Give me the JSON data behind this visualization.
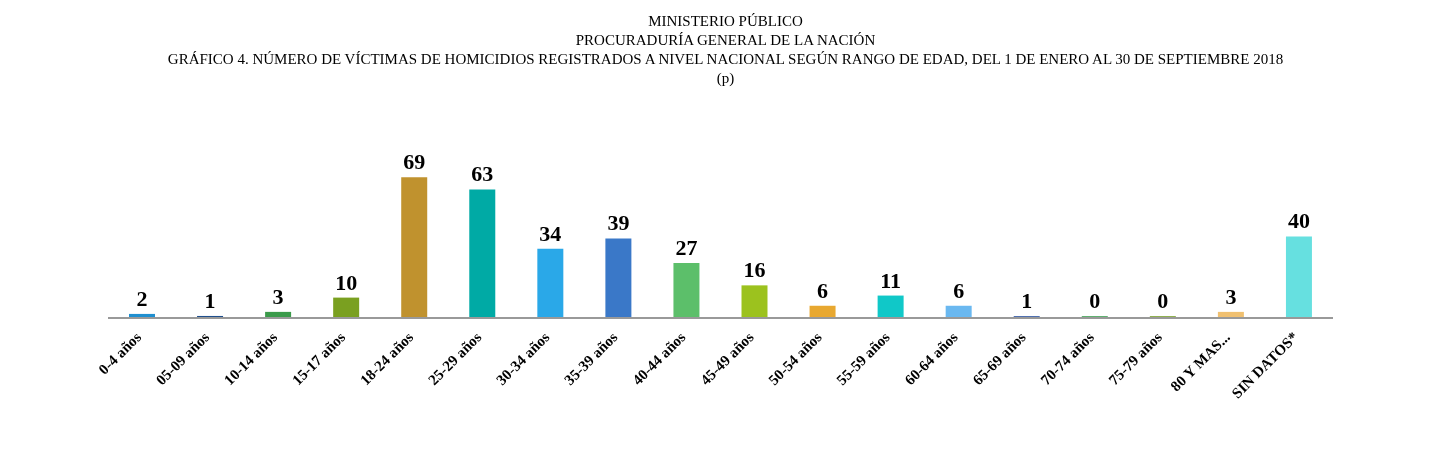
{
  "chart_data": {
    "type": "bar",
    "annotations": [
      "MINISTERIO PÚBLICO",
      "PROCURADURÍA GENERAL DE LA NACIÓN"
    ],
    "title": "GRÁFICO 4. NÚMERO DE VÍCTIMAS DE HOMICIDIOS REGISTRADOS A NIVEL NACIONAL SEGÚN RANGO DE EDAD,  DEL 1 DE ENERO AL 30 DE SEPTIEMBRE 2018 (p)",
    "categories": [
      "0-4 años",
      "05-09 años",
      "10-14 años",
      "15-17 años",
      "18-24 años",
      "25-29 años",
      "30-34 años",
      "35-39 años",
      "40-44 años",
      "45-49 años",
      "50-54 años",
      "55-59 años",
      "60-64 años",
      "65-69 años",
      "70-74 años",
      "75-79 años",
      "80 Y MAS...",
      "SIN DATOS*"
    ],
    "values": [
      2,
      1,
      3,
      10,
      69,
      63,
      34,
      39,
      27,
      16,
      6,
      11,
      6,
      1,
      0,
      0,
      3,
      40
    ],
    "colors": [
      "#1f8fd0",
      "#1f4e8c",
      "#3a9a4a",
      "#7aa020",
      "#c0922e",
      "#00aaa5",
      "#2aa8e8",
      "#3a78c8",
      "#5cbf6a",
      "#9cc21e",
      "#e8a830",
      "#10c8c8",
      "#6ab8f0",
      "#5070b0",
      "#60b070",
      "#90b050",
      "#f0c070",
      "#66e0e0"
    ],
    "data_labels": true,
    "grid": false,
    "legend": false
  }
}
